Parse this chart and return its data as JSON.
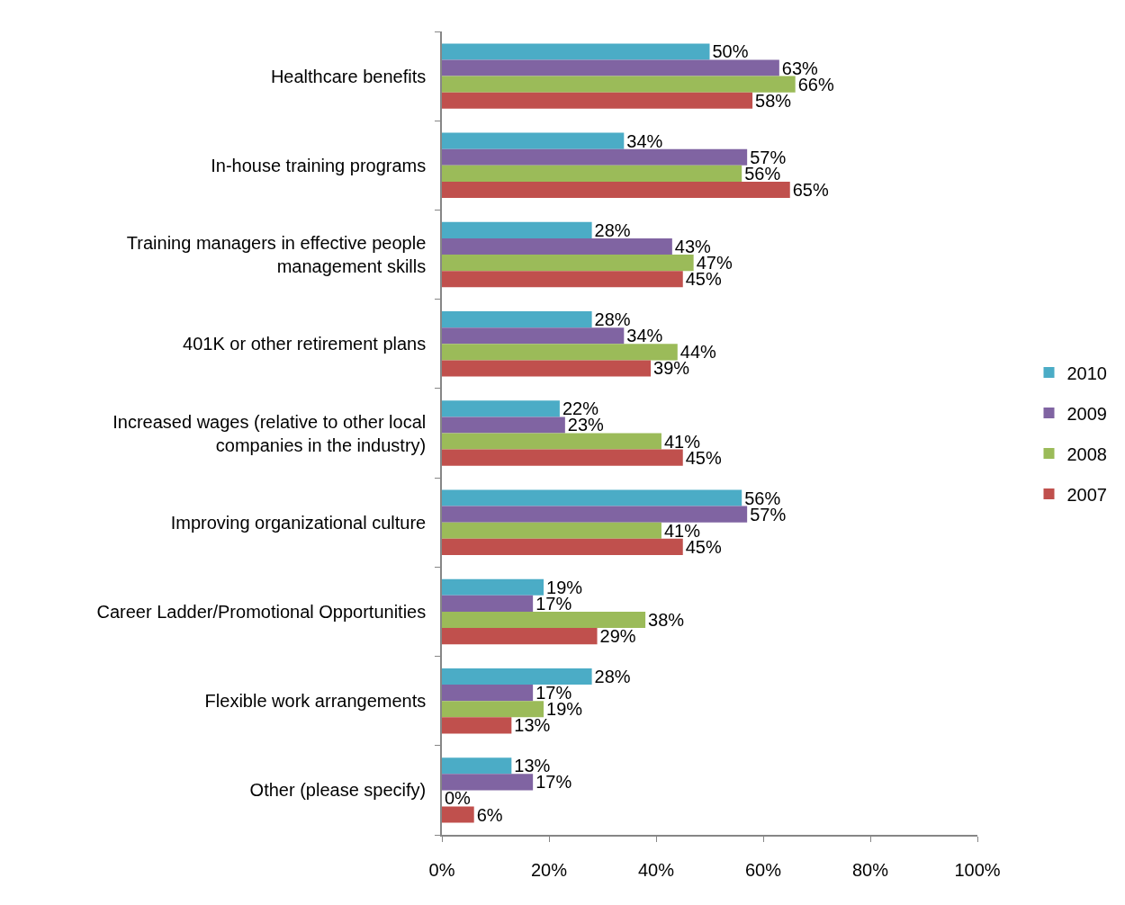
{
  "chart_data": {
    "type": "bar",
    "orientation": "horizontal",
    "categories": [
      "Healthcare benefits",
      "In-house training programs",
      "Training managers in effective people\nmanagement skills",
      "401K or other retirement plans",
      "Increased wages (relative to other local\ncompanies in the industry)",
      "Improving organizational culture",
      "Career Ladder/Promotional Opportunities",
      "Flexible work arrangements",
      "Other (please specify)"
    ],
    "series": [
      {
        "name": "2010",
        "color": "#4bacc6",
        "values": [
          50,
          34,
          28,
          28,
          22,
          56,
          19,
          28,
          13
        ],
        "value_labels": [
          "50%",
          "34%",
          "28%",
          "28%",
          "22%",
          "56%",
          "19%",
          "28%",
          "13%"
        ]
      },
      {
        "name": "2009",
        "color": "#8064a2",
        "values": [
          63,
          57,
          43,
          34,
          23,
          57,
          17,
          17,
          17
        ],
        "value_labels": [
          "63%",
          "57%",
          "43%",
          "34%",
          "23%",
          "57%",
          "17%",
          "17%",
          "17%"
        ]
      },
      {
        "name": "2008",
        "color": "#9bbb59",
        "values": [
          66,
          56,
          47,
          44,
          41,
          41,
          38,
          19,
          0
        ],
        "value_labels": [
          "66%",
          "56%",
          "47%",
          "44%",
          "41%",
          "41%",
          "38%",
          "19%",
          "0%"
        ]
      },
      {
        "name": "2007",
        "color": "#c0504d",
        "values": [
          58,
          65,
          45,
          39,
          45,
          45,
          29,
          13,
          6
        ],
        "value_labels": [
          "58%",
          "65%",
          "45%",
          "39%",
          "45%",
          "45%",
          "29%",
          "13%",
          "6%"
        ]
      }
    ],
    "xlim": [
      0,
      100
    ],
    "xticks": [
      {
        "value": 0,
        "label": "0%"
      },
      {
        "value": 20,
        "label": "20%"
      },
      {
        "value": 40,
        "label": "40%"
      },
      {
        "value": 60,
        "label": "60%"
      },
      {
        "value": 80,
        "label": "80%"
      },
      {
        "value": 100,
        "label": "100%"
      }
    ],
    "legend": "right"
  }
}
